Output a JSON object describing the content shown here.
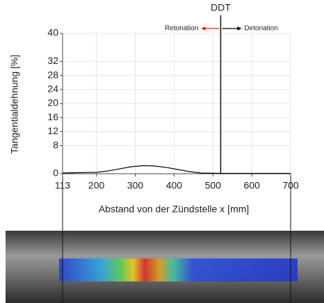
{
  "chart_data": {
    "type": "line",
    "ylabel": "Tangentialdehnung [%]",
    "xlabel": "Abstand von der Zündstelle x [mm]",
    "xlim": [
      113,
      700
    ],
    "xticks": [
      113,
      200,
      300,
      400,
      500,
      600,
      700
    ],
    "ylim": [
      0,
      40
    ],
    "yticks": [
      0,
      8,
      12,
      16,
      20,
      24,
      28,
      32,
      40
    ],
    "grid": true,
    "x": [
      113,
      150,
      200,
      230,
      260,
      290,
      320,
      350,
      380,
      410,
      440,
      470,
      520,
      600,
      700
    ],
    "series": [
      {
        "color": "#000000",
        "values": [
          0.2,
          0.3,
          0.4,
          0.8,
          1.4,
          2.0,
          2.3,
          2.2,
          1.8,
          1.2,
          0.6,
          0.2,
          0.1,
          0.1,
          0.1
        ]
      }
    ],
    "marker": {
      "label": "DDT",
      "x": 520
    },
    "arrows": [
      {
        "label": "Retonation",
        "color": "#e02020"
      },
      {
        "label": "Detonation",
        "color": "#000000"
      }
    ]
  }
}
